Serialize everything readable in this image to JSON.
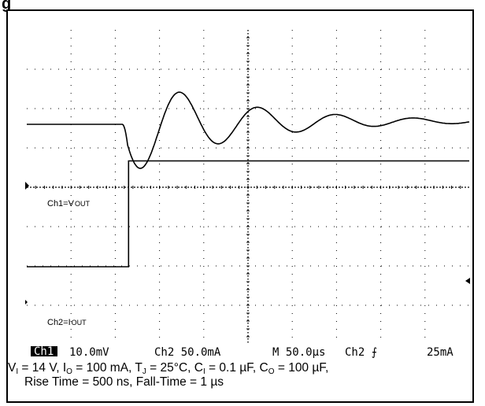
{
  "figure_label": "g",
  "chart_data": {
    "type": "line",
    "title": "",
    "xlabel": "",
    "ylabel": "",
    "grid": true,
    "x_divisions": 10,
    "y_divisions": 8,
    "channel_labels": {
      "ch1": {
        "prefix": "Ch1=V",
        "sub": "OUT"
      },
      "ch2": {
        "prefix": "Ch2=I",
        "sub": "OUT"
      }
    },
    "status_bar": {
      "ch_box": "Ch1",
      "ch1_scale": "10.0mV",
      "ch2_scale": "Ch2  50.0mA",
      "timebase": "M 50.0µs",
      "trigger": "Ch2 ⨍",
      "trigger_level": "25mA"
    },
    "series": [
      {
        "name": "Ch1",
        "x": [
          0,
          10,
          20,
          30,
          40,
          50,
          60,
          70,
          80,
          90,
          100,
          110,
          120,
          130,
          140,
          150,
          160,
          170,
          180,
          190,
          200,
          210,
          220,
          230,
          240,
          250,
          260,
          270,
          280,
          290,
          300,
          310,
          320,
          330,
          340,
          350,
          360,
          370,
          380,
          390,
          400,
          410,
          420,
          430,
          440,
          450,
          460,
          470,
          480,
          490,
          500
        ],
        "y": [
          1.6,
          1.6,
          1.6,
          1.6,
          1.6,
          1.6,
          1.6,
          1.6,
          1.6,
          1.6,
          1.6,
          1.6,
          1.6,
          1.6,
          1.6,
          1.6,
          1.6,
          1.6,
          1.6,
          1.6,
          1.6,
          1.6,
          1.6,
          1.6,
          1.6,
          1.6,
          1.6,
          1.6,
          1.6,
          1.6,
          1.6,
          1.6,
          1.6,
          1.6,
          1.6,
          1.6,
          1.6,
          1.6,
          1.6,
          1.6,
          1.6,
          1.6,
          1.6,
          1.6,
          1.6,
          1.6,
          1.6,
          1.6,
          1.6,
          1.6,
          1.6
        ]
      },
      {
        "name": "Ch2",
        "x": [
          0,
          115,
          115,
          500
        ],
        "y": [
          -2.02,
          -2.02,
          0.67,
          0.67
        ]
      }
    ]
  }
}
